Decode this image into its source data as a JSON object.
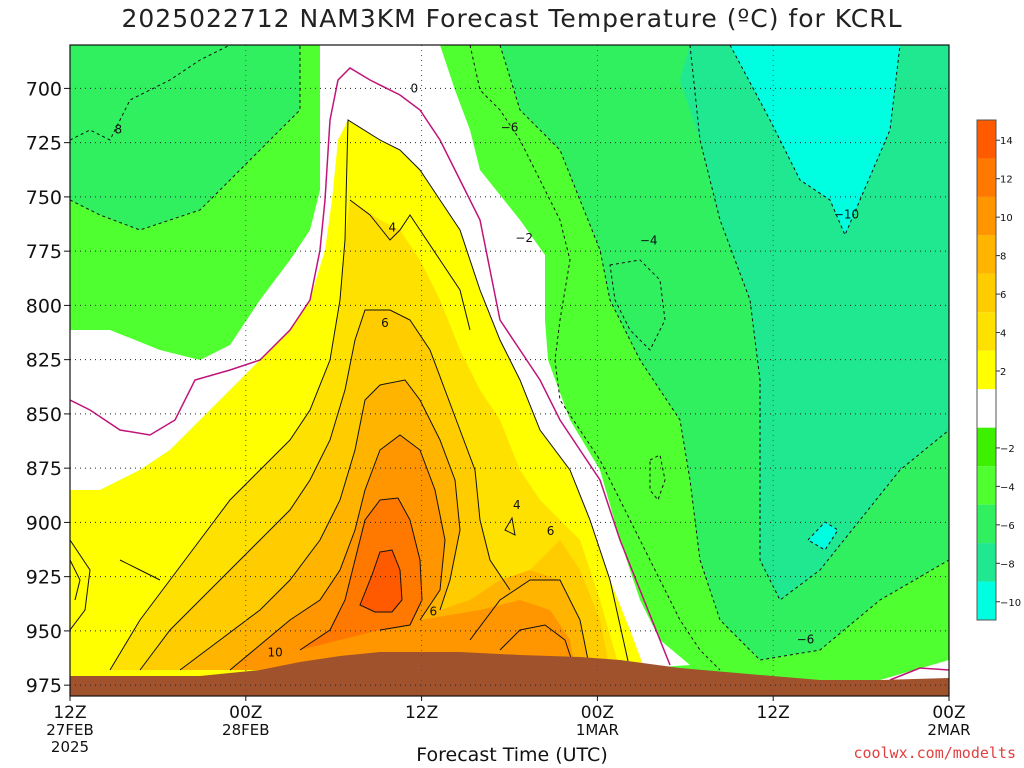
{
  "chart_data": {
    "type": "contour",
    "title": "2025022712 NAM3KM Forecast Temperature (ºC) for KCRL",
    "xlabel": "Forecast Time (UTC)",
    "ylabel": "",
    "x_ticks": [
      {
        "label": "12Z",
        "sub": "27FEB",
        "sub2": "2025",
        "hour": 0
      },
      {
        "label": "00Z",
        "sub": "28FEB",
        "hour": 12
      },
      {
        "label": "12Z",
        "hour": 24
      },
      {
        "label": "00Z",
        "sub": "1MAR",
        "hour": 36
      },
      {
        "label": "12Z",
        "hour": 48
      },
      {
        "label": "00Z",
        "sub": "2MAR",
        "hour": 60
      }
    ],
    "xlim_hours": [
      0,
      60
    ],
    "y_ticks": [
      700,
      725,
      750,
      775,
      800,
      825,
      850,
      875,
      900,
      925,
      950,
      975
    ],
    "ylim_hpa": [
      680,
      980
    ],
    "y_inverted": true,
    "grid": true,
    "contour_labels": [
      {
        "text": "0",
        "hour": 23.5,
        "p": 700
      },
      {
        "text": "−6",
        "hour": 30,
        "p": 718
      },
      {
        "text": "8",
        "hour": 3.3,
        "p": 719
      },
      {
        "text": "−10",
        "hour": 53,
        "p": 758
      },
      {
        "text": "4",
        "hour": 22,
        "p": 764
      },
      {
        "text": "−2",
        "hour": 31,
        "p": 769
      },
      {
        "text": "−4",
        "hour": 39.5,
        "p": 770
      },
      {
        "text": "6",
        "hour": 21.5,
        "p": 808
      },
      {
        "text": "4",
        "hour": 30.5,
        "p": 892
      },
      {
        "text": "6",
        "hour": 32.8,
        "p": 904
      },
      {
        "text": "6",
        "hour": 24.8,
        "p": 941
      },
      {
        "text": "10",
        "hour": 14,
        "p": 960
      },
      {
        "text": "−6",
        "hour": 50.2,
        "p": 954
      }
    ],
    "legend": {
      "placement": "right",
      "levels": [
        {
          "label": "14",
          "color": "#ff5a00"
        },
        {
          "label": "12",
          "color": "#ff7800"
        },
        {
          "label": "10",
          "color": "#ff9600"
        },
        {
          "label": "8",
          "color": "#ffb400"
        },
        {
          "label": "6",
          "color": "#ffcc00"
        },
        {
          "label": "4",
          "color": "#ffe100"
        },
        {
          "label": "2",
          "color": "#ffff00"
        },
        {
          "label": "",
          "color": "#ffffff"
        },
        {
          "label": "−2",
          "color": "#3cf000"
        },
        {
          "label": "−4",
          "color": "#50ff30"
        },
        {
          "label": "−6",
          "color": "#30f060"
        },
        {
          "label": "−8",
          "color": "#20e890"
        },
        {
          "label": "−10",
          "color": "#00ffe0"
        }
      ]
    },
    "terrain_color": "#a0522d"
  },
  "credit": "coolwx.com/modelts"
}
